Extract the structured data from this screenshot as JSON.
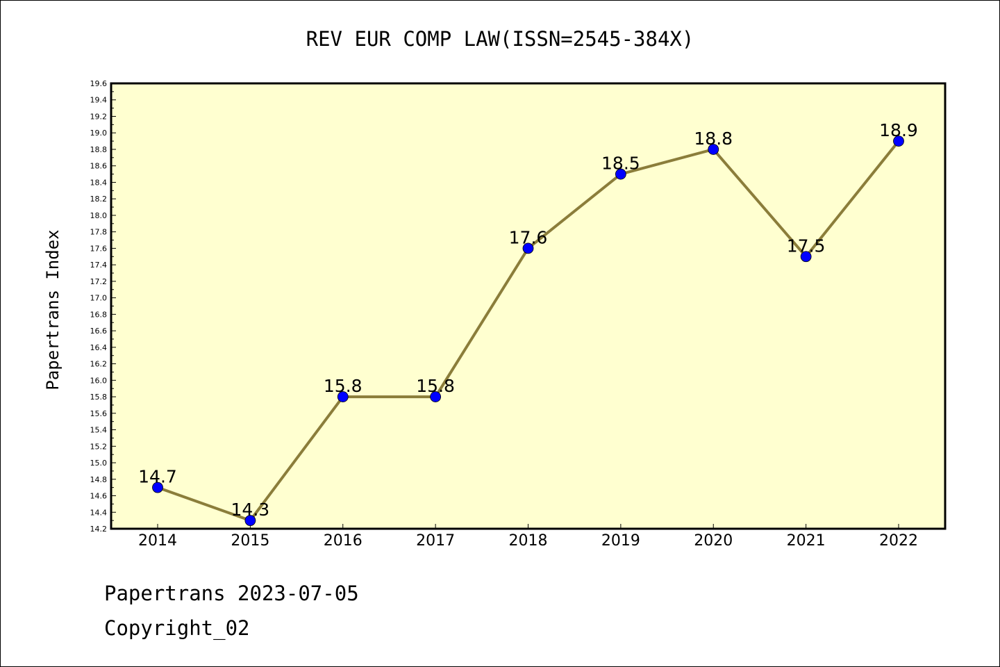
{
  "chart_data": {
    "type": "line",
    "title": "REV EUR COMP LAW(ISSN=2545-384X)",
    "ylabel": "Papertrans Index",
    "xlabel": "",
    "categories": [
      "2014",
      "2015",
      "2016",
      "2017",
      "2018",
      "2019",
      "2020",
      "2021",
      "2022"
    ],
    "values": [
      14.7,
      14.3,
      15.8,
      15.8,
      17.6,
      18.5,
      18.8,
      17.5,
      18.9
    ],
    "data_labels": [
      "14.7",
      "14.3",
      "15.8",
      "15.8",
      "17.6",
      "18.5",
      "18.8",
      "17.5",
      "18.9"
    ],
    "ylim": [
      14.2,
      19.6
    ],
    "yticks": [
      "14.2",
      "14.4",
      "14.6",
      "14.8",
      "15.0",
      "15.2",
      "15.4",
      "15.6",
      "15.8",
      "16.0",
      "16.2",
      "16.4",
      "16.6",
      "16.8",
      "17.0",
      "17.2",
      "17.4",
      "17.6",
      "17.8",
      "18.0",
      "18.2",
      "18.4",
      "18.6",
      "18.8",
      "19.0",
      "19.2",
      "19.4",
      "19.6"
    ],
    "grid": false,
    "colors": {
      "plot_background": "#ffffd0",
      "line": "#8b7d3a",
      "marker": "#0000ff"
    }
  },
  "footer": {
    "line1": "Papertrans 2023-07-05",
    "line2": "Copyright_02"
  }
}
